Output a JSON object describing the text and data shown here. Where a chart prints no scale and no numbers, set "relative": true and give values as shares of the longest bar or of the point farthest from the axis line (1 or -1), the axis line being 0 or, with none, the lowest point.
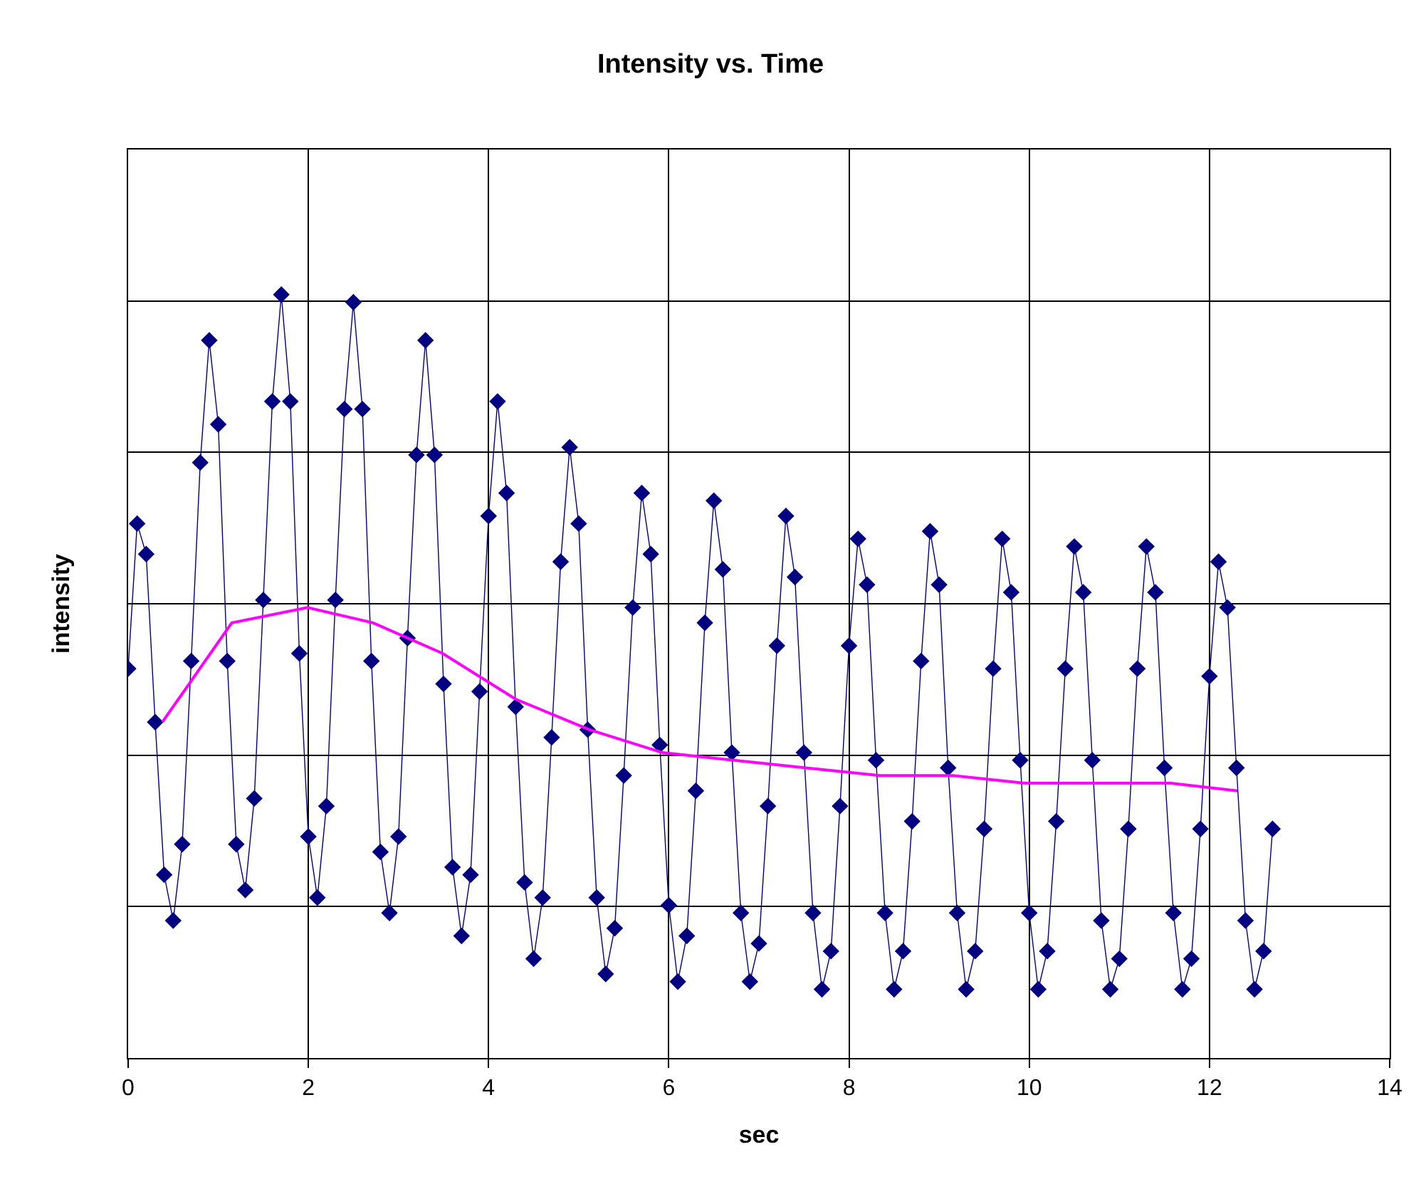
{
  "chart_data": {
    "type": "line",
    "title": "Intensity vs. Time",
    "xlabel": "sec",
    "ylabel": "intensity",
    "relative": true,
    "xlim": [
      0,
      14
    ],
    "xticks": [
      0,
      2,
      4,
      6,
      8,
      10,
      12,
      14
    ],
    "grid": true,
    "series": [
      {
        "color": "#000080",
        "marker": "diamond",
        "x": [
          0,
          0.1,
          0.2,
          0.3,
          0.4,
          0.5,
          0.6,
          0.7,
          0.8,
          0.9,
          1.0,
          1.1,
          1.2,
          1.3,
          1.4,
          1.5,
          1.6,
          1.7,
          1.8,
          1.9,
          2.0,
          2.1,
          2.2,
          2.3,
          2.4,
          2.5,
          2.6,
          2.7,
          2.8,
          2.9,
          3.0,
          3.1,
          3.2,
          3.3,
          3.4,
          3.5,
          3.6,
          3.7,
          3.8,
          3.9,
          4.0,
          4.1,
          4.2,
          4.3,
          4.4,
          4.5,
          4.6,
          4.7,
          4.8,
          4.9,
          5.0,
          5.1,
          5.2,
          5.3,
          5.4,
          5.5,
          5.6,
          5.7,
          5.8,
          5.9,
          6.0,
          6.1,
          6.2,
          6.3,
          6.4,
          6.5,
          6.6,
          6.7,
          6.8,
          6.9,
          7.0,
          7.1,
          7.2,
          7.3,
          7.4,
          7.5,
          7.6,
          7.7,
          7.8,
          7.9,
          8.0,
          8.1,
          8.2,
          8.3,
          8.4,
          8.5,
          8.6,
          8.7,
          8.8,
          8.9,
          9.0,
          9.1,
          9.2,
          9.3,
          9.4,
          9.5,
          9.6,
          9.7,
          9.8,
          9.9,
          10.0,
          10.1,
          10.2,
          10.3,
          10.4,
          10.5,
          10.6,
          10.7,
          10.8,
          10.9,
          11.0,
          11.1,
          11.2,
          11.3,
          11.4,
          11.5,
          11.6,
          11.7,
          11.8,
          11.9,
          12.0,
          12.1,
          12.2,
          12.3,
          12.4,
          12.5,
          12.6,
          12.7
        ],
        "values": [
          0.51,
          0.7,
          0.66,
          0.44,
          0.24,
          0.18,
          0.28,
          0.52,
          0.78,
          0.94,
          0.83,
          0.52,
          0.28,
          0.22,
          0.34,
          0.6,
          0.86,
          1.0,
          0.86,
          0.53,
          0.29,
          0.21,
          0.33,
          0.6,
          0.85,
          0.99,
          0.85,
          0.52,
          0.27,
          0.19,
          0.29,
          0.55,
          0.79,
          0.94,
          0.79,
          0.49,
          0.25,
          0.16,
          0.24,
          0.48,
          0.71,
          0.86,
          0.74,
          0.46,
          0.23,
          0.13,
          0.21,
          0.42,
          0.65,
          0.8,
          0.7,
          0.43,
          0.21,
          0.11,
          0.17,
          0.37,
          0.59,
          0.74,
          0.66,
          0.41,
          0.2,
          0.1,
          0.16,
          0.35,
          0.57,
          0.73,
          0.64,
          0.4,
          0.19,
          0.1,
          0.15,
          0.33,
          0.54,
          0.71,
          0.63,
          0.4,
          0.19,
          0.09,
          0.14,
          0.33,
          0.54,
          0.68,
          0.62,
          0.39,
          0.19,
          0.09,
          0.14,
          0.31,
          0.52,
          0.69,
          0.62,
          0.38,
          0.19,
          0.09,
          0.14,
          0.3,
          0.51,
          0.68,
          0.61,
          0.39,
          0.19,
          0.09,
          0.14,
          0.31,
          0.51,
          0.67,
          0.61,
          0.39,
          0.18,
          0.09,
          0.13,
          0.3,
          0.51,
          0.67,
          0.61,
          0.38,
          0.19,
          0.09,
          0.13,
          0.3,
          0.5,
          0.65,
          0.59,
          0.38,
          0.18,
          0.09,
          0.14,
          0.3
        ]
      },
      {
        "color": "#ff00ff",
        "marker": "none",
        "x": [
          0.38,
          1.15,
          1.99,
          2.72,
          3.49,
          4.3,
          5.12,
          5.93,
          6.72,
          7.52,
          8.34,
          9.15,
          9.95,
          10.74,
          11.57,
          12.31
        ],
        "values": [
          0.44,
          0.57,
          0.59,
          0.57,
          0.53,
          0.47,
          0.43,
          0.4,
          0.39,
          0.38,
          0.37,
          0.37,
          0.36,
          0.36,
          0.36,
          0.35
        ]
      }
    ]
  }
}
